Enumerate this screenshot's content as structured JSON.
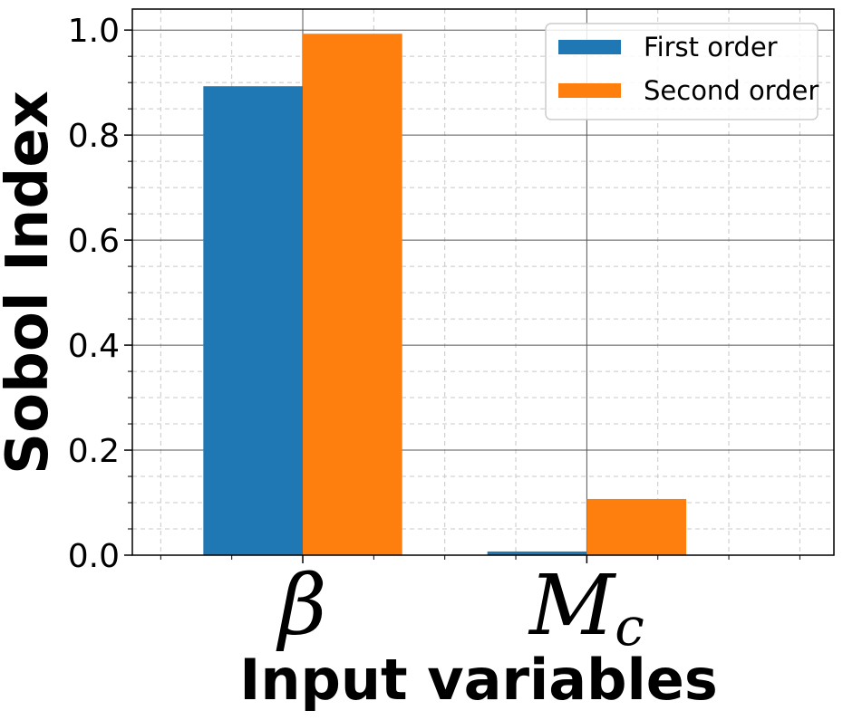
{
  "chart_data": {
    "type": "bar",
    "categories": [
      "β",
      "Mc"
    ],
    "category_labels": [
      {
        "main": "β",
        "sub": ""
      },
      {
        "main": "M",
        "sub": "c"
      }
    ],
    "series": [
      {
        "name": "First order",
        "values": [
          0.893,
          0.007
        ],
        "color": "#1f77b4"
      },
      {
        "name": "Second order",
        "values": [
          0.993,
          0.107
        ],
        "color": "#ff7f0e"
      }
    ],
    "xlabel": "Input variables",
    "ylabel": "Sobol Index",
    "ylim": [
      0,
      1.04
    ],
    "yticks": [
      0.0,
      0.2,
      0.4,
      0.6,
      0.8,
      1.0
    ],
    "ytick_labels": [
      "0.0",
      "0.2",
      "0.4",
      "0.6",
      "0.8",
      "1.0"
    ],
    "grid": true,
    "minor_grid": true,
    "legend_position": "top-right"
  }
}
